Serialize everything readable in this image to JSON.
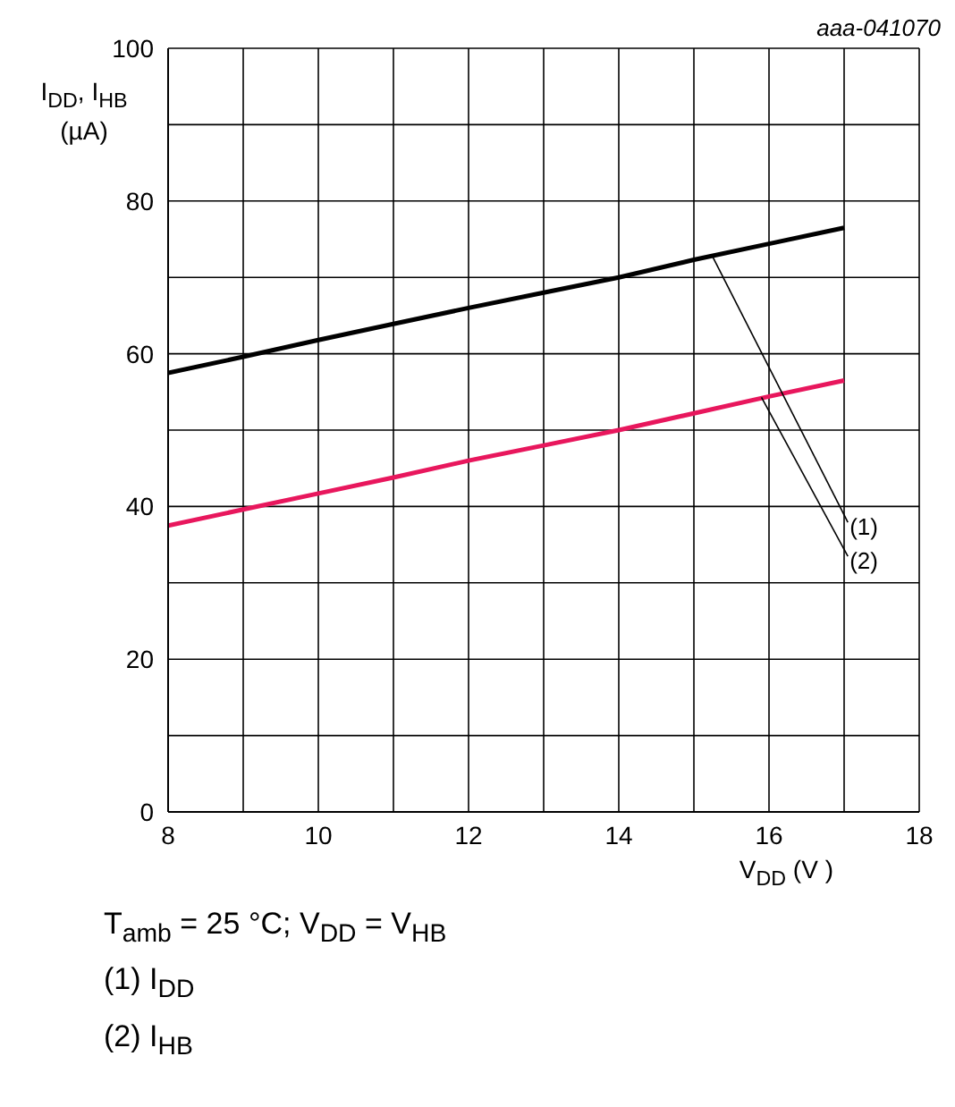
{
  "chart_data": {
    "type": "line",
    "xlabel": "V$_{DD}$ (V )",
    "ylabel": "I$_{DD}$, I$_{HB}$ (µA)",
    "x": [
      8,
      9,
      10,
      11,
      12,
      13,
      14,
      15,
      16,
      17
    ],
    "series": [
      {
        "color": "#000000",
        "values": [
          57.5,
          59.6,
          61.8,
          63.9,
          66,
          68,
          70,
          72.3,
          74.4,
          76.5
        ]
      },
      {
        "color": "#e8175d",
        "values": [
          37.5,
          39.6,
          41.7,
          43.8,
          46,
          48,
          50,
          52.2,
          54.4,
          56.5
        ]
      }
    ],
    "xlim": [
      8,
      18
    ],
    "xticks": [
      8,
      {
        "value": 9,
        "label": null
      },
      10,
      {
        "value": 11,
        "label": null
      },
      12,
      {
        "value": 13,
        "label": null
      },
      14,
      {
        "value": 15,
        "label": null
      },
      16,
      {
        "value": 17,
        "label": null
      },
      18
    ],
    "ylim": [
      0,
      100
    ],
    "yticks": [
      0,
      {
        "value": 10,
        "label": null
      },
      20,
      {
        "value": 30,
        "label": null
      },
      40,
      {
        "value": 50,
        "label": null
      },
      60,
      {
        "value": 70,
        "label": null
      },
      80,
      {
        "value": 90,
        "label": null
      },
      100
    ],
    "grid": true,
    "marker": "none",
    "line_style": "solid",
    "annotations": [
      "aaa-041070",
      {
        "text": "(1)",
        "x": 15.25,
        "y": 72.7
      },
      {
        "text": "(2)",
        "x": 15.9,
        "y": 54.3
      },
      "T$_{amb}$ = 25 °C; V$_{DD}$ = V$_{HB}$",
      "(1) I$_{DD}$",
      "(2) I$_{HB}$"
    ]
  }
}
